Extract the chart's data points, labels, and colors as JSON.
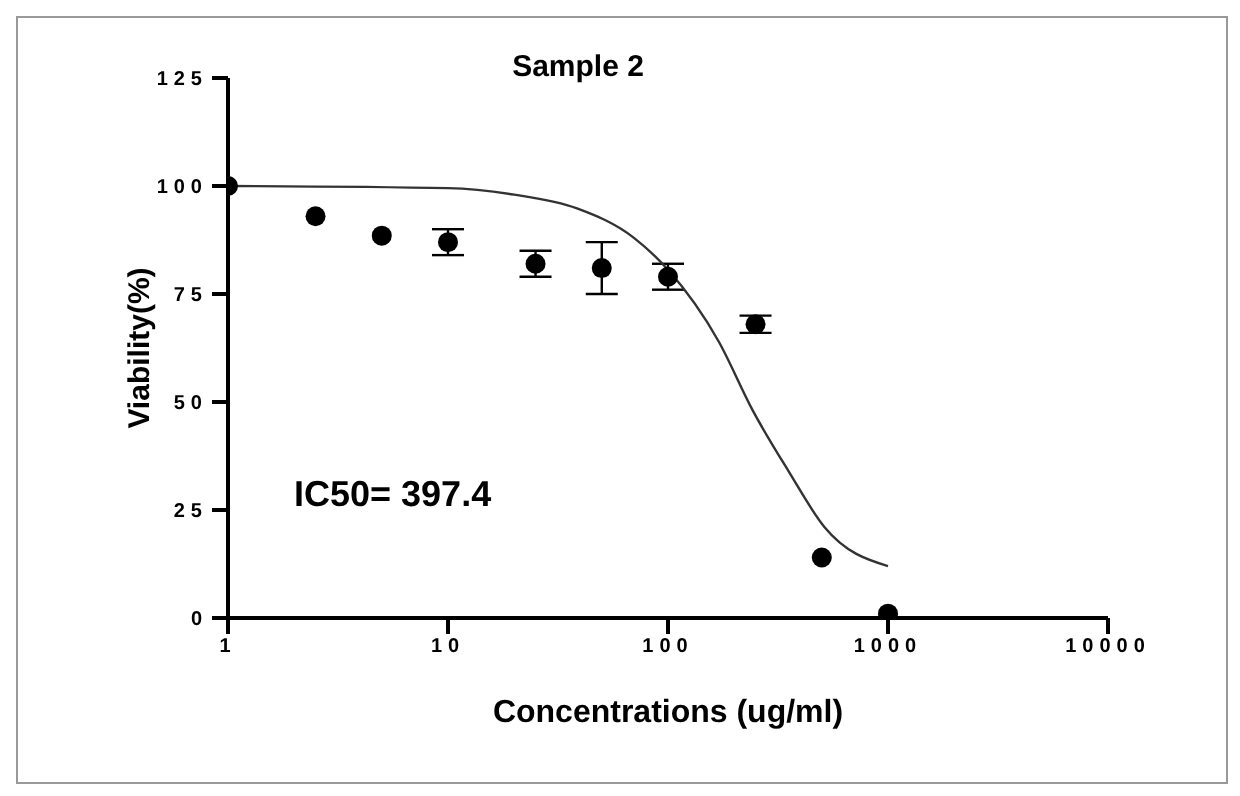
{
  "chart_data": {
    "type": "scatter",
    "title": "Sample 2",
    "xlabel": "Concentrations (ug/ml)",
    "ylabel": "Viability(%)",
    "log": "x",
    "xlim": [
      1,
      10000
    ],
    "xticks": [
      1,
      10,
      100,
      1000,
      10000
    ],
    "ylim": [
      0,
      125
    ],
    "yticks": [
      0,
      25,
      50,
      75,
      100,
      125
    ],
    "marker": "circle",
    "annotations": [
      "IC50= 397.4"
    ],
    "series": [
      {
        "color": "#000000",
        "x": [
          1,
          2.5,
          5,
          10,
          25,
          50,
          100,
          250,
          500,
          1000
        ],
        "values": [
          100,
          93,
          88.5,
          87,
          82,
          81,
          79,
          68,
          14,
          1
        ],
        "errors": [
          null,
          null,
          null,
          3,
          3,
          6,
          3,
          2,
          null,
          null
        ]
      },
      {
        "type": "line",
        "marker": "none",
        "color": "#333333",
        "line_style": "solid",
        "x": [
          1,
          10,
          20,
          38.6,
          70,
          100,
          170,
          243,
          353,
          515,
          1000
        ],
        "values": [
          100,
          99.5,
          98,
          94.8,
          88,
          80.6,
          64,
          48,
          34,
          21,
          12
        ]
      }
    ]
  }
}
